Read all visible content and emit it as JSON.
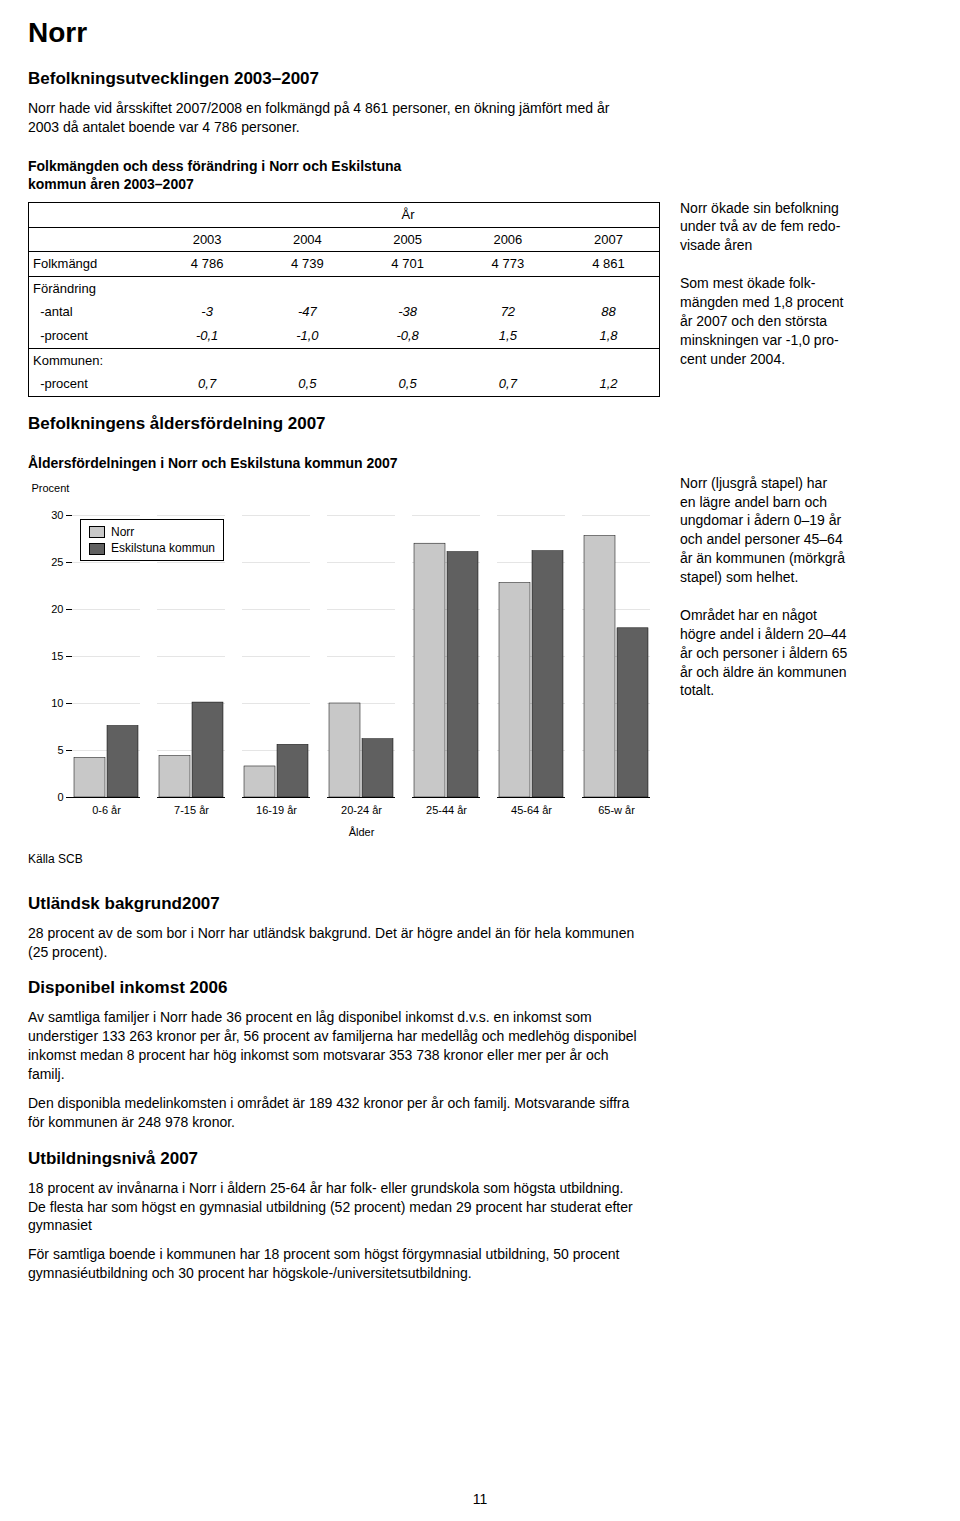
{
  "chart_data": {
    "type": "bar",
    "title": "Åldersfördelningen i Norr och Eskilstuna kommun 2007",
    "categories": [
      "0-6 år",
      "7-15 år",
      "16-19 år",
      "20-24 år",
      "25-44 år",
      "45-64 år",
      "65-w år"
    ],
    "series": [
      {
        "name": "Norr",
        "color": "#c8c8c8",
        "values": [
          4.2,
          4.4,
          3.3,
          10.0,
          27.0,
          22.8,
          27.8
        ]
      },
      {
        "name": "Eskilstuna kommun",
        "color": "#606060",
        "values": [
          7.6,
          10.1,
          5.6,
          6.2,
          26.1,
          26.2,
          18.0
        ]
      }
    ],
    "ylabel": "Procent",
    "xlabel": "Ålder",
    "ylim": [
      0,
      30
    ],
    "yticks": [
      0,
      5,
      10,
      15,
      20,
      25,
      30
    ],
    "grid": true,
    "legend": "upper left",
    "annotations": [
      "Källa SCB"
    ]
  },
  "page": {
    "title": "Norr",
    "section1": {
      "title": "Befolkningsutvecklingen 2003–2007",
      "texts": [
        "Norr hade vid årsskiftet 2007/2008 en folkmängd på 4 861 personer, en ökning jämfört med år\n2003 då antalet boende var 4 786 personer."
      ]
    },
    "table": {
      "title": [
        "Folkmängden och dess förändring i Norr och Eskilstuna",
        "kommun åren 2003–2007"
      ],
      "header": "År",
      "years": [
        "2003",
        "2004",
        "2005",
        "2006",
        "2007"
      ],
      "rows": [
        [
          "Folkmängd",
          "4 786",
          "4 739",
          "4 701",
          "4 773",
          "4 861"
        ],
        [
          "Förändring"
        ],
        [
          "  -antal",
          "-3",
          "-47",
          "-38",
          "72",
          "88"
        ],
        [
          "  -procent",
          "-0,1",
          "-1,0",
          "-0,8",
          "1,5",
          "1,8"
        ],
        [
          "Kommunen:"
        ],
        [
          "  -procent",
          "0,7",
          "0,5",
          "0,5",
          "0,7",
          "1,2"
        ]
      ]
    },
    "table_note": "Norr ökade sin befolkning\nunder två av de fem redo-\nvisade åren\n\nSom mest ökade folk-\nmängden med 1,8 procent\når 2007 och den största\nminskningen var -1,0 pro-\ncent under 2004.",
    "section2_title": "Befolkningens åldersfördelning 2007",
    "chart_note": "Norr (ljusgrå stapel) har\nen lägre andel barn och\nungdomar i ådern 0–19 år\noch andel personer 45–64\når än kommunen (mörkgrå\nstapel) som helhet.\n\nOmrådet har en något\nhögre andel i åldern 20–44\når och personer i åldern 65\når och äldre än kommunen\ntotalt.",
    "section3": {
      "title": "Utländsk bakgrund2007",
      "texts": [
        "28 procent av de som bor i Norr har utländsk bakgrund. Det är högre andel än för hela kommunen\n(25 procent)."
      ]
    },
    "section4": {
      "title": "Disponibel inkomst 2006",
      "texts": [
        "Av samtliga familjer i Norr hade 36 procent en låg disponibel inkomst d.v.s. en inkomst som\nunderstiger 133 263 kronor per år, 56 procent av familjerna har medellåg och medlehög disponibel\ninkomst medan 8 procent har hög inkomst som motsvarar 353 738 kronor eller mer per år och\nfamilj.",
        "Den disponibla medelinkomsten i området är 189 432 kronor per år och familj. Motsvarande siffra\nför kommunen är 248 978 kronor."
      ]
    },
    "section5": {
      "title": "Utbildningsnivå 2007",
      "texts": [
        "18 procent av invånarna i Norr i åldern 25-64 år har folk- eller grundskola som högsta utbildning.\nDe flesta har som högst en gymnasial utbildning (52 procent) medan 29 procent har studerat efter\ngymnasiet",
        "För samtliga boende i kommunen har 18 procent som högst förgymnasial utbildning, 50 procent\ngymnasiéutbildning och 30 procent har högskole-/universitetsutbildning."
      ]
    },
    "page_number": "11"
  }
}
